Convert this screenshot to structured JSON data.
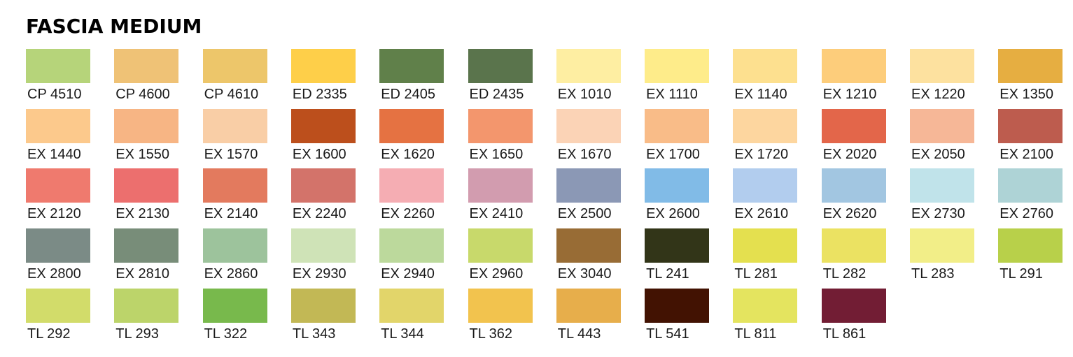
{
  "title": "FASCIA MEDIUM",
  "swatches": [
    {
      "code": "CP 4510",
      "color": "#b6d47a"
    },
    {
      "code": "CP 4600",
      "color": "#efc276"
    },
    {
      "code": "CP 4610",
      "color": "#edc66a"
    },
    {
      "code": "ED 2335",
      "color": "#fecf49"
    },
    {
      "code": "ED 2405",
      "color": "#60804a"
    },
    {
      "code": "ED 2435",
      "color": "#5a744c"
    },
    {
      "code": "EX 1010",
      "color": "#feeea2"
    },
    {
      "code": "EX 1110",
      "color": "#feec8a"
    },
    {
      "code": "EX 1140",
      "color": "#fde08f"
    },
    {
      "code": "EX 1210",
      "color": "#fdcd7b"
    },
    {
      "code": "EX 1220",
      "color": "#fde19f"
    },
    {
      "code": "EX 1350",
      "color": "#e6ae41"
    },
    {
      "code": "EX 1440",
      "color": "#fcc98c"
    },
    {
      "code": "EX 1550",
      "color": "#f7b584"
    },
    {
      "code": "EX 1570",
      "color": "#f9cea6"
    },
    {
      "code": "EX 1600",
      "color": "#bc4f1c"
    },
    {
      "code": "EX 1620",
      "color": "#e57242"
    },
    {
      "code": "EX 1650",
      "color": "#f3966d"
    },
    {
      "code": "EX 1670",
      "color": "#fbd3b6"
    },
    {
      "code": "EX 1700",
      "color": "#f9bc88"
    },
    {
      "code": "EX 1720",
      "color": "#fdd69f"
    },
    {
      "code": "EX 2020",
      "color": "#e3664a"
    },
    {
      "code": "EX 2050",
      "color": "#f6b797"
    },
    {
      "code": "EX 2100",
      "color": "#bd5c4e"
    },
    {
      "code": "EX 2120",
      "color": "#ef7a6e"
    },
    {
      "code": "EX 2130",
      "color": "#ec6f6e"
    },
    {
      "code": "EX 2140",
      "color": "#e37a5e"
    },
    {
      "code": "EX 2240",
      "color": "#d3736a"
    },
    {
      "code": "EX 2260",
      "color": "#f5adb3"
    },
    {
      "code": "EX 2410",
      "color": "#d29caf"
    },
    {
      "code": "EX 2500",
      "color": "#8b98b5"
    },
    {
      "code": "EX 2600",
      "color": "#81bbe7"
    },
    {
      "code": "EX 2610",
      "color": "#b2cdee"
    },
    {
      "code": "EX 2620",
      "color": "#a2c6e1"
    },
    {
      "code": "EX 2730",
      "color": "#c0e3ea"
    },
    {
      "code": "EX 2760",
      "color": "#aed3d6"
    },
    {
      "code": "EX 2800",
      "color": "#7b8b86"
    },
    {
      "code": "EX 2810",
      "color": "#788d79"
    },
    {
      "code": "EX 2860",
      "color": "#9dc39c"
    },
    {
      "code": "EX 2930",
      "color": "#cfe3b7"
    },
    {
      "code": "EX 2940",
      "color": "#bcd99c"
    },
    {
      "code": "EX 2960",
      "color": "#c8d96b"
    },
    {
      "code": "EX 3040",
      "color": "#986c35"
    },
    {
      "code": "TL 241",
      "color": "#323518"
    },
    {
      "code": "TL 281",
      "color": "#e4e04f"
    },
    {
      "code": "TL 282",
      "color": "#ebe262"
    },
    {
      "code": "TL 283",
      "color": "#f2ee88"
    },
    {
      "code": "TL 291",
      "color": "#b8d04a"
    },
    {
      "code": "TL 292",
      "color": "#d2dc6a"
    },
    {
      "code": "TL 293",
      "color": "#bcd46a"
    },
    {
      "code": "TL 322",
      "color": "#78b94c"
    },
    {
      "code": "TL 343",
      "color": "#c2b855"
    },
    {
      "code": "TL 344",
      "color": "#e2d56a"
    },
    {
      "code": "TL 362",
      "color": "#f2c34e"
    },
    {
      "code": "TL 443",
      "color": "#e7ae4b"
    },
    {
      "code": "TL 541",
      "color": "#421202"
    },
    {
      "code": "TL 811",
      "color": "#e4e45f"
    },
    {
      "code": "TL 861",
      "color": "#721d34"
    }
  ]
}
